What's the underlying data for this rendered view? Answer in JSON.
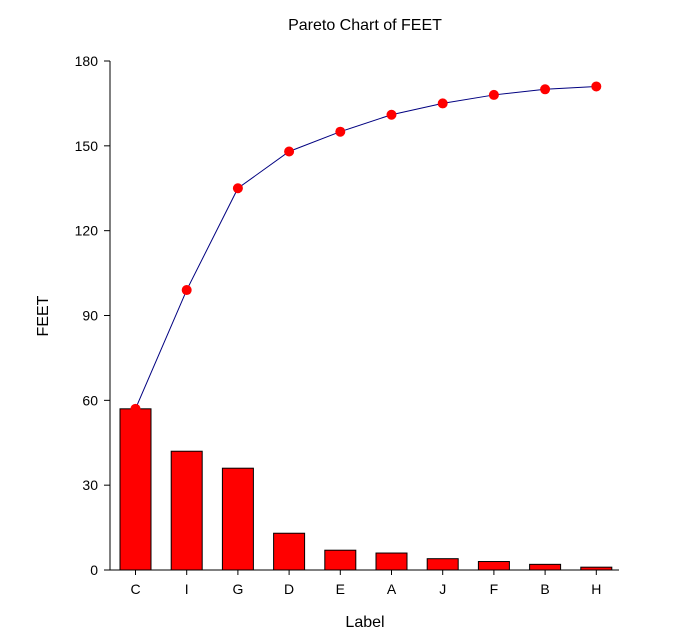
{
  "chart_data": {
    "type": "bar",
    "title": "Pareto Chart of FEET",
    "xlabel": "Label",
    "ylabel": "FEET",
    "categories": [
      "C",
      "I",
      "G",
      "D",
      "E",
      "A",
      "J",
      "F",
      "B",
      "H"
    ],
    "series": [
      {
        "values": [
          57,
          42,
          36,
          13,
          7,
          6,
          4,
          3,
          2,
          1
        ]
      },
      {
        "values": [
          57,
          99,
          135,
          148,
          155,
          161,
          165,
          168,
          170,
          171
        ]
      }
    ],
    "ylim": [
      0,
      180
    ],
    "yticks": [
      0,
      30,
      60,
      90,
      120,
      150,
      180
    ],
    "grid": false,
    "colors": {
      "bar": "#ff0000",
      "bar_stroke": "#000000",
      "line": "#000080",
      "marker": "#ff0000"
    }
  }
}
